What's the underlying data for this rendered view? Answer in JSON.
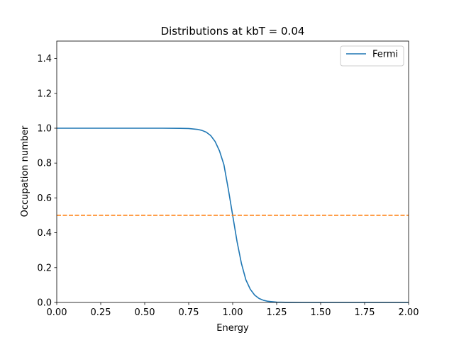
{
  "chart_data": {
    "type": "line",
    "title": "Distributions at kbT = 0.04",
    "xlabel": "Energy",
    "ylabel": "Occupation number",
    "xlim": [
      0.0,
      2.0
    ],
    "ylim": [
      0.0,
      1.5
    ],
    "xticks": [
      "0.00",
      "0.25",
      "0.50",
      "0.75",
      "1.00",
      "1.25",
      "1.50",
      "1.75",
      "2.00"
    ],
    "yticks": [
      "0.0",
      "0.2",
      "0.4",
      "0.6",
      "0.8",
      "1.0",
      "1.2",
      "1.4"
    ],
    "grid": false,
    "legend_position": "top-right",
    "series": [
      {
        "name": "Fermi",
        "color": "#1f77b4",
        "style": "solid",
        "x": [
          0.0,
          0.1,
          0.2,
          0.3,
          0.4,
          0.5,
          0.6,
          0.7,
          0.75,
          0.8,
          0.825,
          0.85,
          0.875,
          0.9,
          0.925,
          0.95,
          0.975,
          1.0,
          1.025,
          1.05,
          1.075,
          1.1,
          1.125,
          1.15,
          1.175,
          1.2,
          1.25,
          1.3,
          1.4,
          1.5,
          1.6,
          1.7,
          1.8,
          1.9,
          2.0
        ],
        "y": [
          1.0,
          1.0,
          1.0,
          1.0,
          1.0,
          1.0,
          1.0,
          0.9994,
          0.9981,
          0.9933,
          0.9876,
          0.977,
          0.9577,
          0.9241,
          0.8699,
          0.7914,
          0.6514,
          0.5,
          0.3486,
          0.2227,
          0.1301,
          0.0759,
          0.0423,
          0.023,
          0.0124,
          0.0067,
          0.0019,
          0.0006,
          0.0,
          0.0,
          0.0,
          0.0,
          0.0,
          0.0,
          0.0
        ]
      },
      {
        "color": "#ff7f0e",
        "style": "dashed",
        "x": [
          0.0,
          2.0
        ],
        "y": [
          0.5,
          0.5
        ]
      }
    ]
  }
}
